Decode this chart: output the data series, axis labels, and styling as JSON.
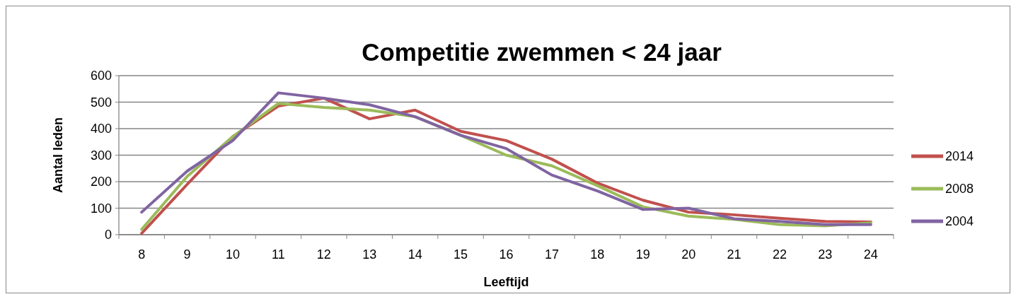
{
  "chart_data": {
    "type": "line",
    "title": "Competitie zwemmen < 24 jaar",
    "xlabel": "Leeftijd",
    "ylabel": "Aantal leden",
    "categories": [
      "8",
      "9",
      "10",
      "11",
      "12",
      "13",
      "14",
      "15",
      "16",
      "17",
      "18",
      "19",
      "20",
      "21",
      "22",
      "23",
      "24"
    ],
    "series": [
      {
        "name": "2014",
        "color": "#c0504d",
        "values": [
          5,
          190,
          370,
          485,
          515,
          437,
          470,
          390,
          355,
          285,
          195,
          130,
          85,
          75,
          62,
          50,
          48
        ]
      },
      {
        "name": "2008",
        "color": "#9bbb59",
        "values": [
          20,
          220,
          370,
          495,
          480,
          470,
          445,
          375,
          300,
          260,
          185,
          105,
          70,
          58,
          38,
          33,
          45
        ]
      },
      {
        "name": "2004",
        "color": "#8064a2",
        "values": [
          85,
          240,
          355,
          535,
          515,
          490,
          445,
          375,
          325,
          225,
          165,
          95,
          100,
          60,
          50,
          38,
          38
        ]
      }
    ],
    "ylim": [
      0,
      600
    ],
    "yticks": [
      0,
      100,
      200,
      300,
      400,
      500,
      600
    ],
    "grid": "y",
    "legend": "right",
    "marker": "none",
    "line_style": "solid"
  }
}
